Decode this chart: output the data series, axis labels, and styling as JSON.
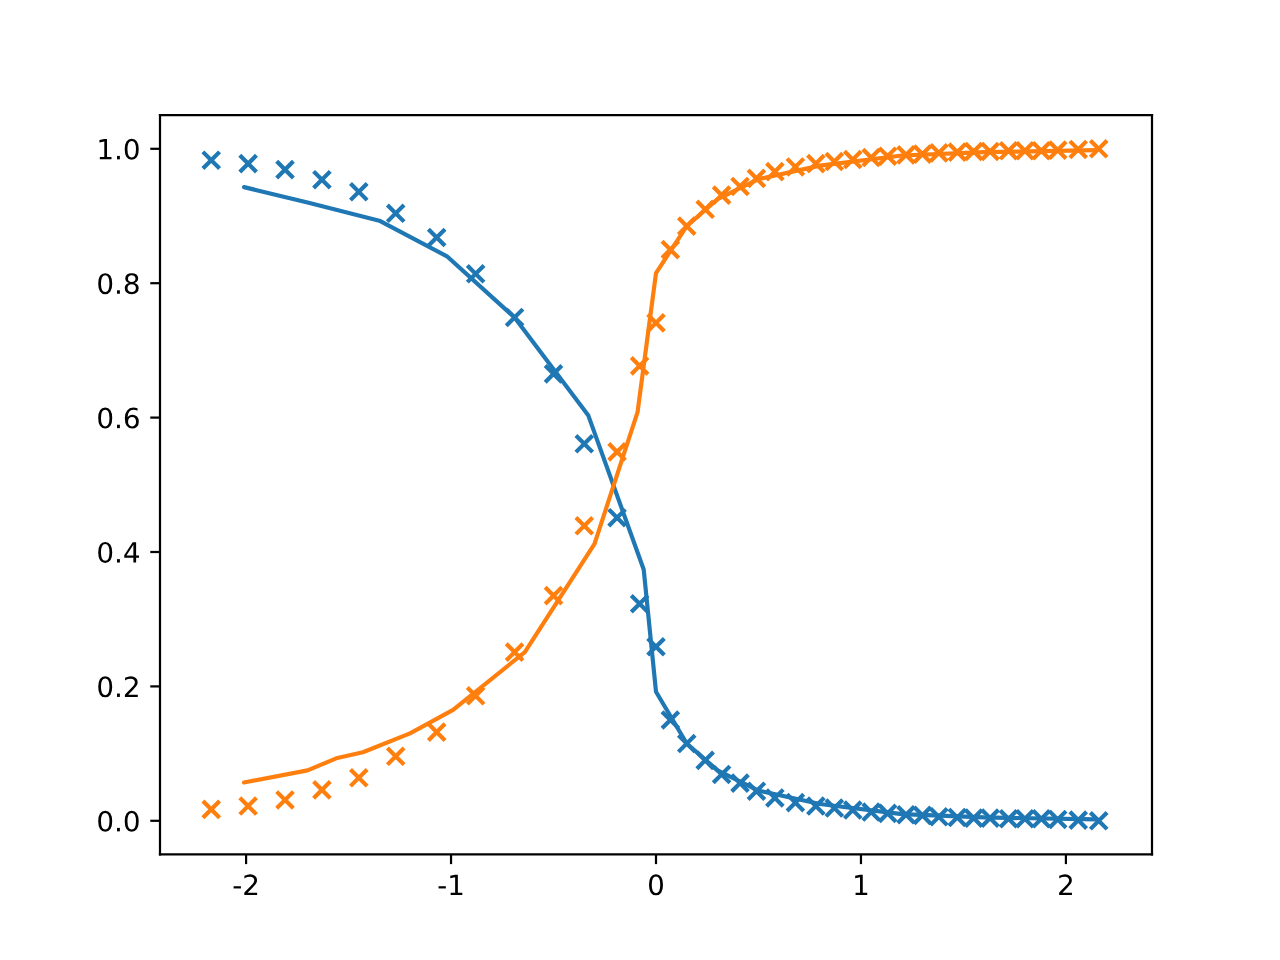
{
  "chart_data": {
    "type": "scatter",
    "grid": false,
    "legend": false,
    "xlim": [
      -2.42,
      2.42
    ],
    "ylim": [
      -0.05,
      1.05
    ],
    "xticks": [
      -2,
      -1,
      0,
      1,
      2
    ],
    "yticks": [
      {
        "value": 0,
        "label": "0.0"
      },
      {
        "value": 0.2,
        "label": "0.2"
      },
      {
        "value": 0.4,
        "label": "0.4"
      },
      {
        "value": 0.6,
        "label": "0.6"
      },
      {
        "value": 0.8,
        "label": "0.8"
      },
      {
        "value": 1.0,
        "label": "1.0"
      }
    ],
    "series": [
      {
        "marker": "cross",
        "color": "#1f77b4",
        "x": [
          -2.17,
          -1.99,
          -1.81,
          -1.63,
          -1.45,
          -1.27,
          -1.07,
          -0.88,
          -0.69,
          -0.5,
          -0.35,
          -0.19,
          -0.08,
          0.0,
          0.07,
          0.15,
          0.24,
          0.32,
          0.41,
          0.49,
          0.58,
          0.68,
          0.78,
          0.87,
          0.96,
          1.05,
          1.13,
          1.22,
          1.3,
          1.38,
          1.47,
          1.55,
          1.63,
          1.72,
          1.8,
          1.88,
          1.96,
          2.06,
          2.16
        ],
        "values": [
          0.983,
          0.978,
          0.969,
          0.954,
          0.936,
          0.904,
          0.868,
          0.814,
          0.749,
          0.665,
          0.561,
          0.451,
          0.323,
          0.259,
          0.15,
          0.115,
          0.09,
          0.069,
          0.056,
          0.044,
          0.034,
          0.027,
          0.022,
          0.019,
          0.016,
          0.013,
          0.011,
          0.009,
          0.008,
          0.006,
          0.005,
          0.004,
          0.004,
          0.003,
          0.003,
          0.003,
          0.002,
          0.001,
          0.0
        ]
      },
      {
        "marker": "cross",
        "color": "#ff7f0e",
        "x": [
          -2.17,
          -1.99,
          -1.81,
          -1.63,
          -1.45,
          -1.27,
          -1.07,
          -0.88,
          -0.69,
          -0.5,
          -0.35,
          -0.19,
          -0.08,
          0.0,
          0.07,
          0.15,
          0.24,
          0.32,
          0.41,
          0.49,
          0.58,
          0.68,
          0.78,
          0.87,
          0.96,
          1.05,
          1.13,
          1.22,
          1.3,
          1.38,
          1.47,
          1.55,
          1.63,
          1.72,
          1.8,
          1.88,
          1.96,
          2.06,
          2.16
        ],
        "values": [
          0.017,
          0.022,
          0.031,
          0.046,
          0.064,
          0.096,
          0.132,
          0.186,
          0.251,
          0.335,
          0.439,
          0.549,
          0.677,
          0.741,
          0.85,
          0.885,
          0.91,
          0.931,
          0.944,
          0.956,
          0.966,
          0.973,
          0.978,
          0.981,
          0.984,
          0.987,
          0.989,
          0.991,
          0.992,
          0.994,
          0.995,
          0.996,
          0.996,
          0.997,
          0.997,
          0.997,
          0.998,
          0.999,
          1.0
        ]
      },
      {
        "type": "line",
        "marker": "none",
        "line_style": "solid",
        "color": "#1f77b4",
        "x": [
          -2.01,
          -1.7,
          -1.35,
          -1.02,
          -0.69,
          -0.33,
          -0.06,
          0.0,
          0.15,
          0.3,
          0.5,
          0.8,
          1.2,
          1.6,
          2.15
        ],
        "values": [
          0.943,
          0.92,
          0.893,
          0.84,
          0.749,
          0.603,
          0.374,
          0.192,
          0.115,
          0.075,
          0.045,
          0.025,
          0.01,
          0.005,
          0.002
        ]
      },
      {
        "type": "line",
        "marker": "none",
        "line_style": "solid",
        "color": "#ff7f0e",
        "x": [
          -2.01,
          -1.7,
          -1.56,
          -1.43,
          -1.2,
          -0.99,
          -0.64,
          -0.3,
          -0.09,
          0.0,
          0.15,
          0.3,
          0.5,
          0.8,
          1.2,
          1.6,
          2.15
        ],
        "values": [
          0.057,
          0.075,
          0.093,
          0.102,
          0.13,
          0.165,
          0.251,
          0.412,
          0.608,
          0.815,
          0.885,
          0.925,
          0.955,
          0.975,
          0.99,
          0.995,
          0.998
        ]
      }
    ]
  }
}
